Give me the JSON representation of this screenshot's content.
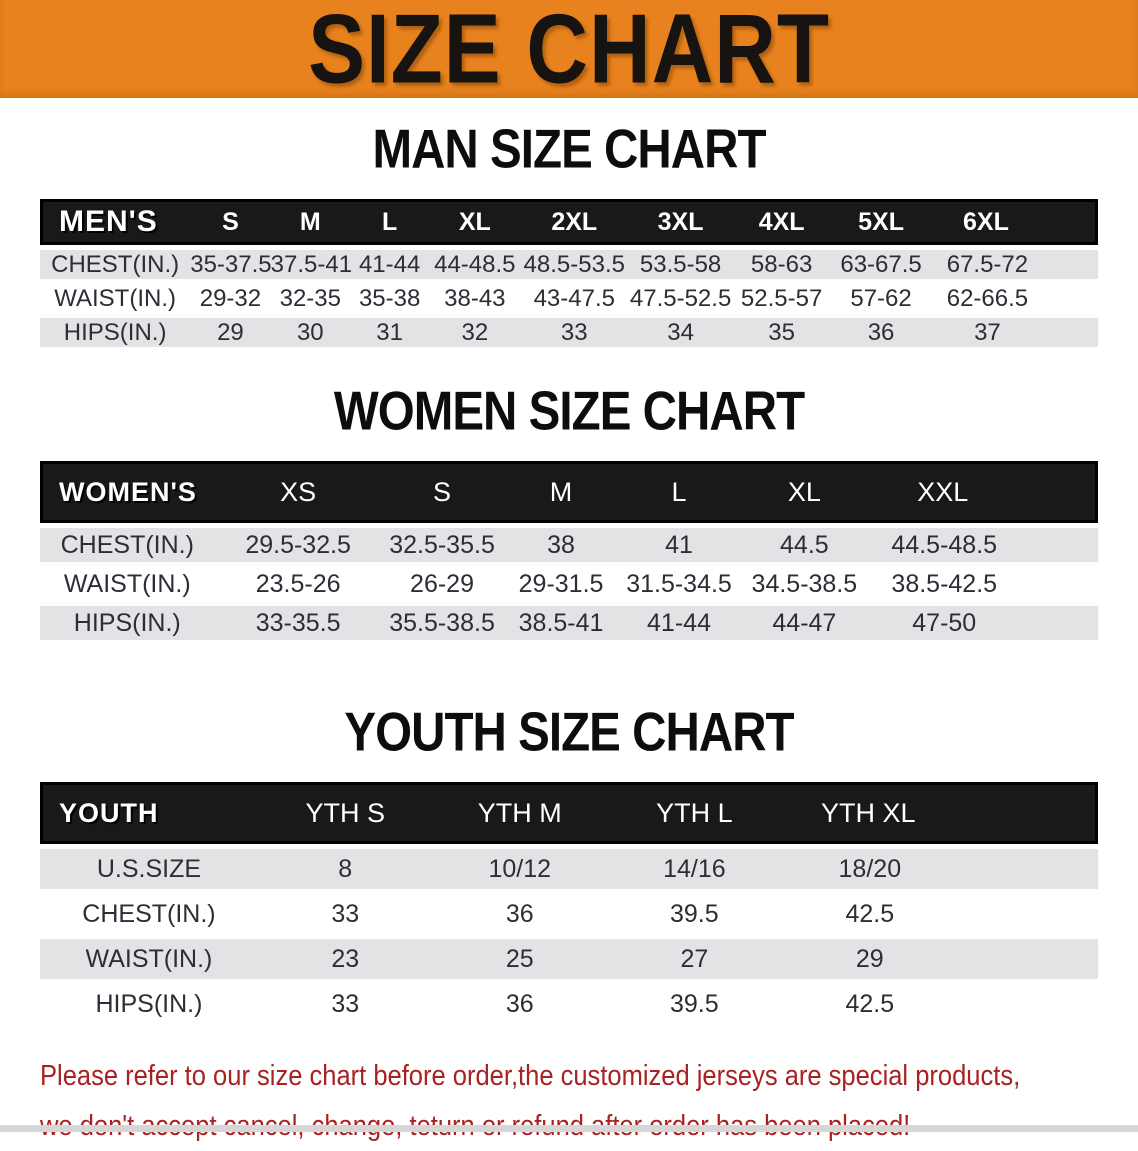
{
  "banner": {
    "title": "SIZE CHART",
    "bg_color": "#e8821e",
    "text_color": "#161310"
  },
  "sections": [
    {
      "heading": "MAN SIZE CHART",
      "table": {
        "header": [
          "MEN'S",
          "S",
          "M",
          "L",
          "XL",
          "2XL",
          "3XL",
          "4XL",
          "5XL",
          "6XL"
        ],
        "rows": [
          [
            "CHEST(IN.)",
            "35-37.5",
            "37.5-41",
            "41-44",
            "44-48.5",
            "48.5-53.5",
            "53.5-58",
            "58-63",
            "63-67.5",
            "67.5-72"
          ],
          [
            "WAIST(IN.)",
            "29-32",
            "32-35",
            "35-38",
            "38-43",
            "43-47.5",
            "47.5-52.5",
            "52.5-57",
            "57-62",
            "62-66.5"
          ],
          [
            "HIPS(IN.)",
            "29",
            "30",
            "31",
            "32",
            "33",
            "34",
            "35",
            "36",
            "37"
          ]
        ]
      }
    },
    {
      "heading": "WOMEN SIZE CHART",
      "table": {
        "header": [
          "WOMEN'S",
          "XS",
          "S",
          "M",
          "L",
          "XL",
          "XXL"
        ],
        "rows": [
          [
            "CHEST(IN.)",
            "29.5-32.5",
            "32.5-35.5",
            "38",
            "41",
            "44.5",
            "44.5-48.5"
          ],
          [
            "WAIST(IN.)",
            "23.5-26",
            "26-29",
            "29-31.5",
            "31.5-34.5",
            "34.5-38.5",
            "38.5-42.5"
          ],
          [
            "HIPS(IN.)",
            "33-35.5",
            "35.5-38.5",
            "38.5-41",
            "41-44",
            "44-47",
            "47-50"
          ]
        ]
      }
    },
    {
      "heading": "YOUTH SIZE CHART",
      "table": {
        "header": [
          "YOUTH",
          "YTH S",
          "YTH M",
          "YTH L",
          "YTH XL"
        ],
        "rows": [
          [
            "U.S.SIZE",
            "8",
            "10/12",
            "14/16",
            "18/20"
          ],
          [
            "CHEST(IN.)",
            "33",
            "36",
            "39.5",
            "42.5"
          ],
          [
            "WAIST(IN.)",
            "23",
            "25",
            "27",
            "29"
          ],
          [
            "HIPS(IN.)",
            "33",
            "36",
            "39.5",
            "42.5"
          ]
        ]
      }
    }
  ],
  "disclaimer": {
    "line1": "Please refer to our size chart before order,the customized jerseys are special products,",
    "line2": "we don't accept cancel, change, teturn or refund after order has been placed!",
    "color": "#a82222"
  },
  "colors": {
    "table_header_bg": "#1b1917",
    "row_stripe": "#e3e3e5",
    "body_text": "#2d2d35"
  }
}
